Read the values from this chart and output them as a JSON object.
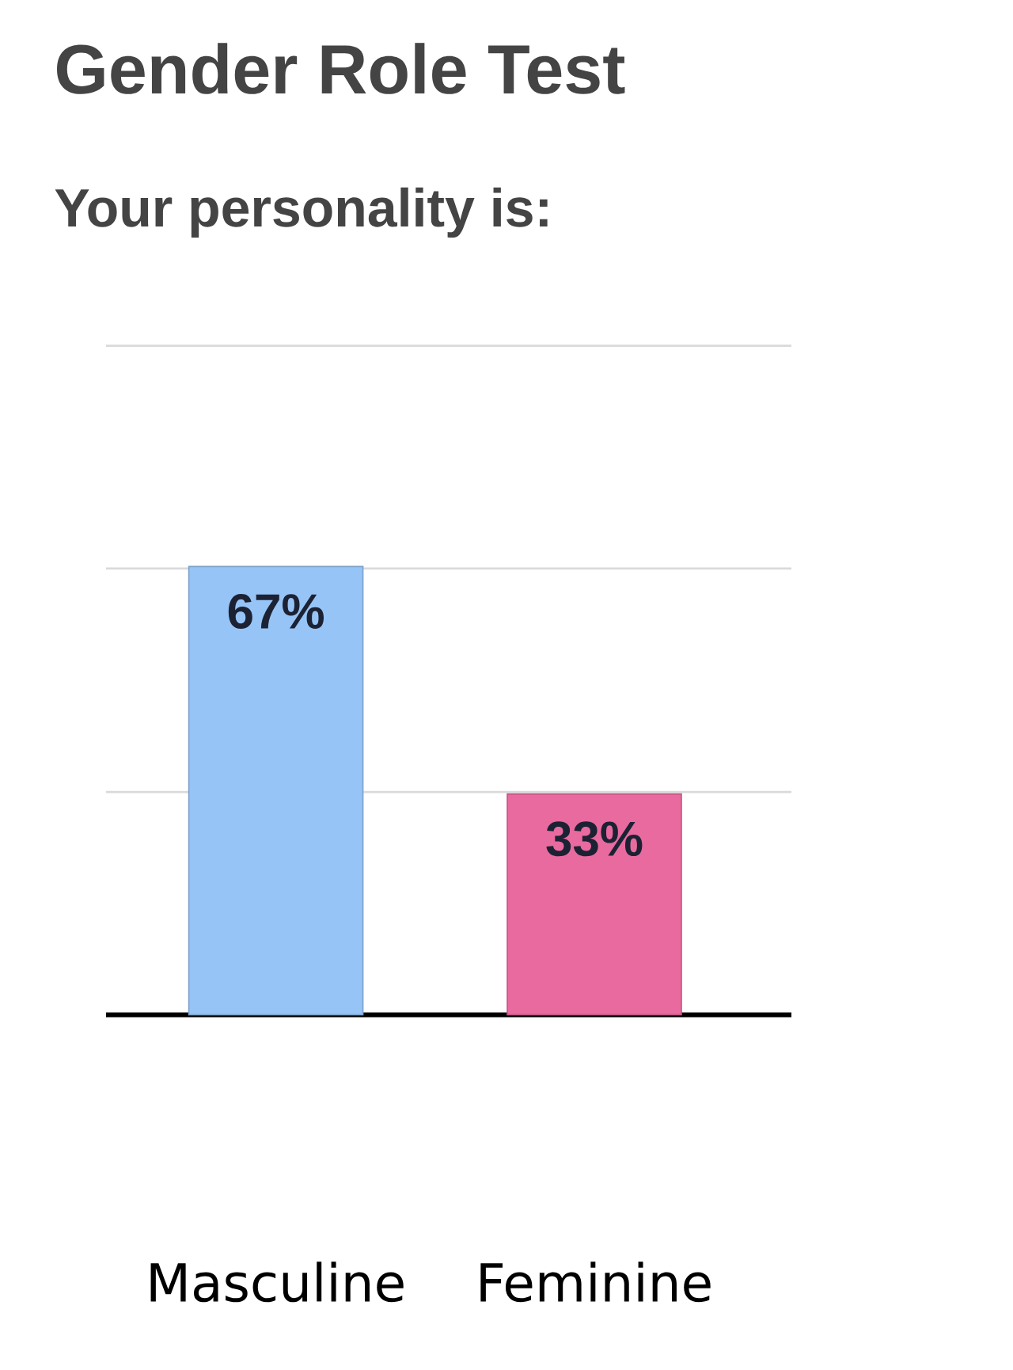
{
  "chart_data": {
    "type": "bar",
    "title": "Gender Role Test",
    "subtitle": "Your personality is:",
    "categories": [
      "Masculine",
      "Feminine"
    ],
    "values": [
      67,
      33
    ],
    "colors": [
      "#97c4f6",
      "#e96a9f"
    ],
    "value_labels": [
      "67%",
      "33%"
    ],
    "ylim": [
      0,
      100
    ],
    "yticks": [
      {
        "value": 0,
        "label": null
      },
      {
        "value": 33.3,
        "label": null
      },
      {
        "value": 66.7,
        "label": null
      },
      {
        "value": 100,
        "label": null
      }
    ],
    "grid": "y",
    "tick_labels": "x"
  }
}
